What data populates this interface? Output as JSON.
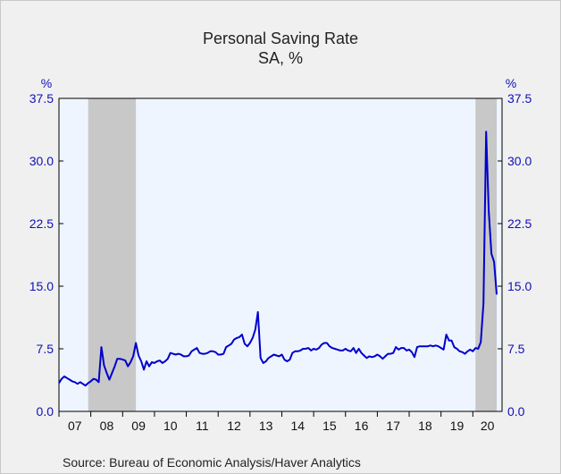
{
  "chart_data": {
    "type": "line",
    "title": "Personal Saving Rate",
    "subtitle": "SA, %",
    "source": "Source:  Bureau of Economic Analysis/Haver Analytics",
    "left_unit": "%",
    "right_unit": "%",
    "ylim": [
      0,
      37.5
    ],
    "y_ticks": [
      "0.0",
      "7.5",
      "15.0",
      "22.5",
      "30.0",
      "37.5"
    ],
    "x_tick_labels": [
      "07",
      "08",
      "09",
      "10",
      "11",
      "12",
      "13",
      "14",
      "15",
      "16",
      "17",
      "18",
      "19",
      "20"
    ],
    "x_range": [
      2007.0,
      2020.917
    ],
    "grid": false,
    "recessions": [
      [
        2007.917,
        2009.417
      ],
      [
        2020.083,
        2020.75
      ]
    ],
    "colors": {
      "line": "#0000cc",
      "plot_bg": "#eef5ff",
      "recession": "#c8c8c8",
      "axis_text": "#1010b8"
    },
    "series": [
      {
        "values": [
          [
            2007.0,
            3.4
          ],
          [
            2007.083,
            3.9
          ],
          [
            2007.167,
            4.2
          ],
          [
            2007.25,
            4.0
          ],
          [
            2007.333,
            3.8
          ],
          [
            2007.417,
            3.6
          ],
          [
            2007.5,
            3.5
          ],
          [
            2007.583,
            3.3
          ],
          [
            2007.667,
            3.5
          ],
          [
            2007.75,
            3.3
          ],
          [
            2007.833,
            3.1
          ],
          [
            2007.917,
            3.4
          ],
          [
            2008.0,
            3.6
          ],
          [
            2008.083,
            3.9
          ],
          [
            2008.167,
            3.8
          ],
          [
            2008.25,
            3.5
          ],
          [
            2008.333,
            7.7
          ],
          [
            2008.417,
            5.5
          ],
          [
            2008.5,
            4.6
          ],
          [
            2008.583,
            3.8
          ],
          [
            2008.667,
            4.6
          ],
          [
            2008.75,
            5.4
          ],
          [
            2008.833,
            6.3
          ],
          [
            2008.917,
            6.3
          ],
          [
            2009.0,
            6.2
          ],
          [
            2009.083,
            6.1
          ],
          [
            2009.167,
            5.4
          ],
          [
            2009.25,
            5.9
          ],
          [
            2009.333,
            6.6
          ],
          [
            2009.417,
            8.2
          ],
          [
            2009.5,
            6.7
          ],
          [
            2009.583,
            6.0
          ],
          [
            2009.667,
            5.0
          ],
          [
            2009.75,
            6.0
          ],
          [
            2009.833,
            5.4
          ],
          [
            2009.917,
            5.9
          ],
          [
            2010.0,
            5.8
          ],
          [
            2010.083,
            6.0
          ],
          [
            2010.167,
            6.1
          ],
          [
            2010.25,
            5.8
          ],
          [
            2010.333,
            6.0
          ],
          [
            2010.417,
            6.3
          ],
          [
            2010.5,
            7.0
          ],
          [
            2010.583,
            6.9
          ],
          [
            2010.667,
            6.8
          ],
          [
            2010.75,
            6.9
          ],
          [
            2010.833,
            6.8
          ],
          [
            2010.917,
            6.6
          ],
          [
            2011.0,
            6.6
          ],
          [
            2011.083,
            6.7
          ],
          [
            2011.167,
            7.2
          ],
          [
            2011.25,
            7.4
          ],
          [
            2011.333,
            7.6
          ],
          [
            2011.417,
            7.0
          ],
          [
            2011.5,
            6.9
          ],
          [
            2011.583,
            6.9
          ],
          [
            2011.667,
            7.0
          ],
          [
            2011.75,
            7.2
          ],
          [
            2011.833,
            7.2
          ],
          [
            2011.917,
            7.1
          ],
          [
            2012.0,
            6.8
          ],
          [
            2012.083,
            6.8
          ],
          [
            2012.167,
            6.9
          ],
          [
            2012.25,
            7.7
          ],
          [
            2012.333,
            7.9
          ],
          [
            2012.417,
            8.1
          ],
          [
            2012.5,
            8.6
          ],
          [
            2012.583,
            8.8
          ],
          [
            2012.667,
            8.9
          ],
          [
            2012.75,
            9.2
          ],
          [
            2012.833,
            8.1
          ],
          [
            2012.917,
            7.8
          ],
          [
            2013.0,
            8.2
          ],
          [
            2013.083,
            8.8
          ],
          [
            2013.167,
            9.8
          ],
          [
            2013.25,
            11.9
          ],
          [
            2013.333,
            6.4
          ],
          [
            2013.417,
            5.8
          ],
          [
            2013.5,
            6.0
          ],
          [
            2013.583,
            6.4
          ],
          [
            2013.667,
            6.6
          ],
          [
            2013.75,
            6.8
          ],
          [
            2013.833,
            6.7
          ],
          [
            2013.917,
            6.6
          ],
          [
            2014.0,
            6.8
          ],
          [
            2014.083,
            6.2
          ],
          [
            2014.167,
            6.0
          ],
          [
            2014.25,
            6.2
          ],
          [
            2014.333,
            7.0
          ],
          [
            2014.417,
            7.2
          ],
          [
            2014.5,
            7.2
          ],
          [
            2014.583,
            7.3
          ],
          [
            2014.667,
            7.5
          ],
          [
            2014.75,
            7.5
          ],
          [
            2014.833,
            7.6
          ],
          [
            2014.917,
            7.3
          ],
          [
            2015.0,
            7.5
          ],
          [
            2015.083,
            7.4
          ],
          [
            2015.167,
            7.6
          ],
          [
            2015.25,
            8.0
          ],
          [
            2015.333,
            8.2
          ],
          [
            2015.417,
            8.2
          ],
          [
            2015.5,
            7.8
          ],
          [
            2015.583,
            7.6
          ],
          [
            2015.667,
            7.5
          ],
          [
            2015.75,
            7.4
          ],
          [
            2015.833,
            7.3
          ],
          [
            2015.917,
            7.3
          ],
          [
            2016.0,
            7.5
          ],
          [
            2016.083,
            7.3
          ],
          [
            2016.167,
            7.2
          ],
          [
            2016.25,
            7.6
          ],
          [
            2016.333,
            7.0
          ],
          [
            2016.417,
            7.5
          ],
          [
            2016.5,
            7.0
          ],
          [
            2016.583,
            6.7
          ],
          [
            2016.667,
            6.4
          ],
          [
            2016.75,
            6.6
          ],
          [
            2016.833,
            6.5
          ],
          [
            2016.917,
            6.6
          ],
          [
            2017.0,
            6.8
          ],
          [
            2017.083,
            6.6
          ],
          [
            2017.167,
            6.3
          ],
          [
            2017.25,
            6.6
          ],
          [
            2017.333,
            6.9
          ],
          [
            2017.417,
            6.9
          ],
          [
            2017.5,
            7.0
          ],
          [
            2017.583,
            7.7
          ],
          [
            2017.667,
            7.4
          ],
          [
            2017.75,
            7.6
          ],
          [
            2017.833,
            7.6
          ],
          [
            2017.917,
            7.3
          ],
          [
            2018.0,
            7.4
          ],
          [
            2018.083,
            7.1
          ],
          [
            2018.167,
            6.5
          ],
          [
            2018.25,
            7.7
          ],
          [
            2018.333,
            7.8
          ],
          [
            2018.417,
            7.8
          ],
          [
            2018.5,
            7.8
          ],
          [
            2018.583,
            7.8
          ],
          [
            2018.667,
            7.9
          ],
          [
            2018.75,
            7.8
          ],
          [
            2018.833,
            7.9
          ],
          [
            2018.917,
            7.8
          ],
          [
            2019.0,
            7.6
          ],
          [
            2019.083,
            7.4
          ],
          [
            2019.167,
            9.2
          ],
          [
            2019.25,
            8.5
          ],
          [
            2019.333,
            8.5
          ],
          [
            2019.417,
            7.7
          ],
          [
            2019.5,
            7.5
          ],
          [
            2019.583,
            7.2
          ],
          [
            2019.667,
            7.1
          ],
          [
            2019.75,
            6.9
          ],
          [
            2019.833,
            7.2
          ],
          [
            2019.917,
            7.4
          ],
          [
            2020.0,
            7.2
          ],
          [
            2020.083,
            7.6
          ],
          [
            2020.167,
            7.5
          ],
          [
            2020.25,
            8.3
          ],
          [
            2020.333,
            12.9
          ],
          [
            2020.417,
            33.5
          ],
          [
            2020.5,
            24.0
          ],
          [
            2020.583,
            18.9
          ],
          [
            2020.667,
            17.9
          ],
          [
            2020.75,
            14.0
          ]
        ]
      }
    ]
  }
}
